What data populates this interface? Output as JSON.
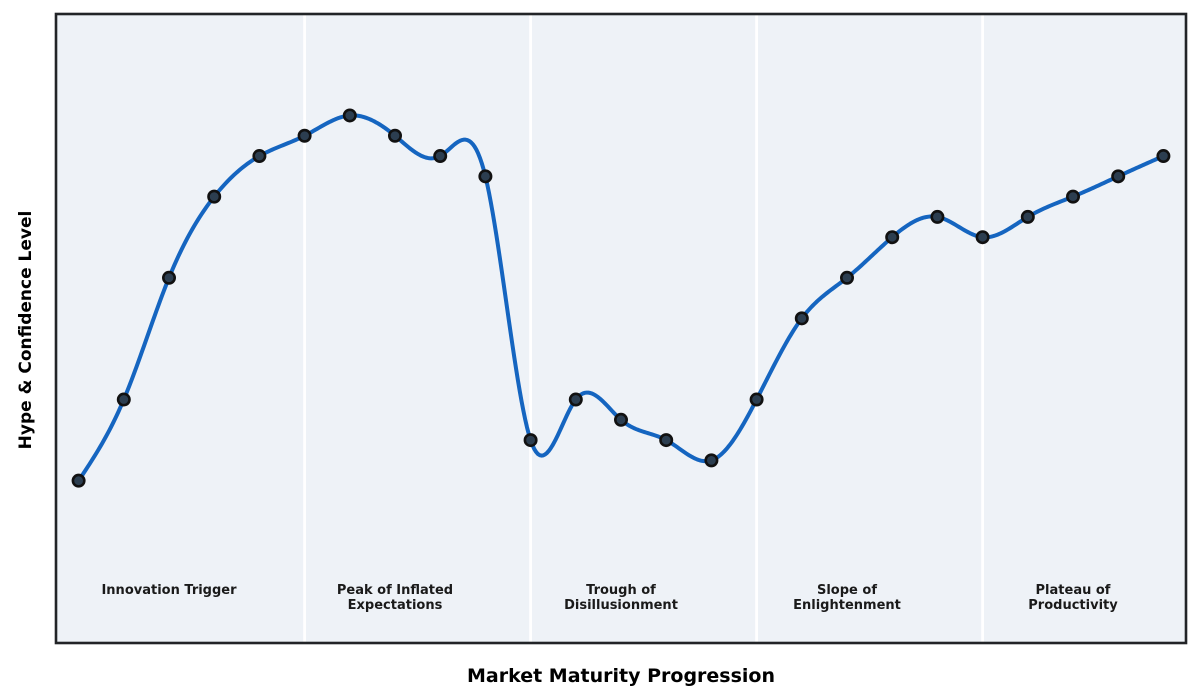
{
  "figure": {
    "background_color": "#ffffff",
    "plot_background_color": "#eef2f7",
    "spine_color": "#222427",
    "divider_color": "#ffffff",
    "phase_label_color": "#1a1a1a",
    "axis_label_color": "#000000"
  },
  "chart_data": {
    "type": "line",
    "title": "",
    "xlabel": "Market Maturity Progression",
    "ylabel": "Hype & Confidence Level",
    "x": [
      0,
      1,
      2,
      3,
      4,
      5,
      6,
      7,
      8,
      9,
      10,
      11,
      12,
      13,
      14,
      15,
      16,
      17,
      18,
      19,
      20,
      21,
      22,
      23,
      24
    ],
    "values": [
      10,
      30,
      60,
      80,
      90,
      95,
      100,
      95,
      90,
      85,
      20,
      30,
      25,
      20,
      15,
      30,
      50,
      60,
      70,
      75,
      70,
      75,
      80,
      85,
      90
    ],
    "xlim": [
      -0.5,
      24.5
    ],
    "ylim": [
      -30,
      125
    ],
    "grid": false,
    "legend": "none",
    "smoothing": "cubic-spline",
    "line_color": "#1565c0",
    "line_width": 4,
    "marker": {
      "shape": "circle",
      "fill": "#2c3e50",
      "edge": "#111111",
      "radius": 5.7,
      "edge_width": 2.6
    },
    "phases": [
      {
        "lines": [
          "Innovation Trigger"
        ],
        "center_x": 2
      },
      {
        "lines": [
          "Peak of Inflated",
          "Expectations"
        ],
        "center_x": 7
      },
      {
        "lines": [
          "Trough of",
          "Disillusionment"
        ],
        "center_x": 12
      },
      {
        "lines": [
          "Slope of",
          "Enlightenment"
        ],
        "center_x": 17
      },
      {
        "lines": [
          "Plateau of",
          "Productivity"
        ],
        "center_x": 22
      }
    ],
    "phase_divider_x": [
      5,
      10,
      15,
      20
    ],
    "phase_label_y": -17
  }
}
